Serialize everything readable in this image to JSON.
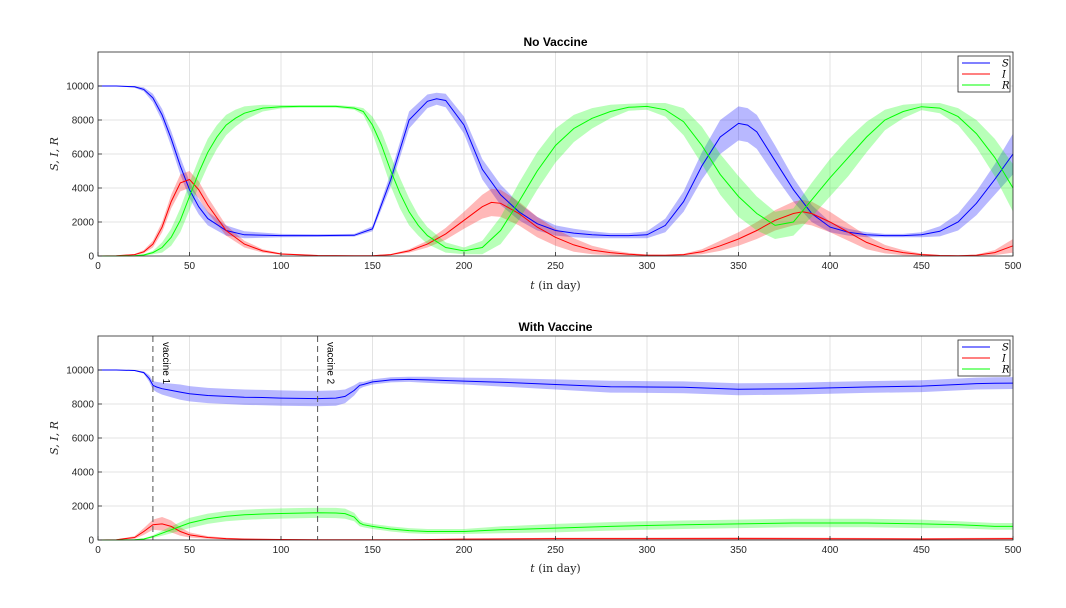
{
  "chart_data": [
    {
      "type": "line",
      "title": "No Vaccine",
      "xlabel": "t (in day)",
      "ylabel": "S, I, R",
      "xlim": [
        0,
        500
      ],
      "ylim": [
        0,
        12000
      ],
      "xticks": [
        0,
        50,
        100,
        150,
        200,
        250,
        300,
        350,
        400,
        450,
        500
      ],
      "yticks": [
        0,
        2000,
        4000,
        6000,
        8000,
        10000
      ],
      "grid": true,
      "legend_position": "top-right",
      "series": [
        {
          "name": "S",
          "color": "#0000ff",
          "x": [
            0,
            10,
            20,
            25,
            30,
            35,
            40,
            45,
            50,
            55,
            60,
            70,
            80,
            100,
            120,
            140,
            150,
            160,
            170,
            180,
            185,
            190,
            200,
            210,
            220,
            230,
            240,
            250,
            260,
            270,
            280,
            290,
            300,
            310,
            320,
            330,
            340,
            350,
            355,
            360,
            370,
            380,
            390,
            400,
            410,
            420,
            430,
            440,
            450,
            460,
            470,
            480,
            490,
            500
          ],
          "y": [
            10000,
            10000,
            9950,
            9800,
            9300,
            8300,
            6900,
            5300,
            3900,
            2900,
            2200,
            1500,
            1250,
            1200,
            1200,
            1220,
            1600,
            4500,
            8000,
            9100,
            9250,
            9150,
            7700,
            5100,
            3600,
            2600,
            1900,
            1500,
            1350,
            1250,
            1200,
            1200,
            1250,
            1800,
            3200,
            5300,
            7000,
            7800,
            7700,
            7300,
            5600,
            3900,
            2500,
            1700,
            1400,
            1250,
            1200,
            1200,
            1250,
            1450,
            2000,
            3100,
            4500,
            6000
          ],
          "band": [
            0,
            0,
            50,
            120,
            250,
            350,
            450,
            500,
            500,
            450,
            400,
            300,
            200,
            100,
            80,
            80,
            150,
            400,
            500,
            400,
            350,
            400,
            500,
            600,
            600,
            500,
            400,
            300,
            250,
            200,
            150,
            150,
            200,
            400,
            600,
            800,
            1000,
            1000,
            1000,
            1000,
            900,
            700,
            500,
            300,
            200,
            150,
            100,
            100,
            150,
            300,
            500,
            700,
            900,
            1200
          ]
        },
        {
          "name": "I",
          "color": "#ff0000",
          "x": [
            0,
            10,
            20,
            25,
            30,
            35,
            40,
            45,
            50,
            55,
            60,
            70,
            80,
            90,
            100,
            120,
            140,
            150,
            160,
            170,
            180,
            190,
            200,
            210,
            215,
            220,
            230,
            240,
            250,
            260,
            270,
            280,
            290,
            300,
            310,
            320,
            330,
            340,
            350,
            360,
            370,
            380,
            385,
            390,
            400,
            410,
            420,
            430,
            440,
            450,
            460,
            470,
            480,
            490,
            500
          ],
          "y": [
            0,
            10,
            80,
            250,
            700,
            1700,
            3200,
            4300,
            4500,
            3900,
            3000,
            1500,
            700,
            300,
            120,
            30,
            10,
            20,
            80,
            300,
            700,
            1300,
            2100,
            2900,
            3150,
            3100,
            2500,
            1700,
            1100,
            650,
            350,
            200,
            100,
            50,
            40,
            80,
            250,
            600,
            1000,
            1500,
            2100,
            2500,
            2600,
            2500,
            2000,
            1400,
            800,
            400,
            200,
            80,
            30,
            20,
            50,
            200,
            600
          ],
          "band": [
            0,
            10,
            40,
            100,
            200,
            300,
            400,
            500,
            500,
            500,
            450,
            300,
            200,
            100,
            50,
            20,
            10,
            15,
            40,
            100,
            200,
            350,
            500,
            700,
            800,
            800,
            700,
            600,
            500,
            400,
            250,
            150,
            80,
            40,
            30,
            50,
            150,
            300,
            400,
            500,
            600,
            700,
            700,
            700,
            600,
            500,
            400,
            250,
            150,
            60,
            30,
            20,
            40,
            150,
            400
          ]
        },
        {
          "name": "R",
          "color": "#00ff00",
          "x": [
            0,
            10,
            20,
            25,
            30,
            35,
            40,
            45,
            50,
            55,
            60,
            65,
            70,
            75,
            80,
            90,
            100,
            110,
            120,
            130,
            140,
            145,
            150,
            155,
            160,
            165,
            170,
            175,
            180,
            190,
            200,
            210,
            220,
            230,
            240,
            250,
            260,
            270,
            280,
            290,
            300,
            310,
            320,
            330,
            340,
            350,
            360,
            370,
            380,
            390,
            400,
            410,
            420,
            430,
            440,
            450,
            460,
            470,
            480,
            490,
            500
          ],
          "y": [
            0,
            0,
            20,
            60,
            200,
            500,
            1100,
            2100,
            3500,
            4900,
            6100,
            7000,
            7700,
            8100,
            8400,
            8700,
            8780,
            8800,
            8800,
            8800,
            8700,
            8500,
            7700,
            6500,
            5000,
            3700,
            2600,
            1800,
            1200,
            500,
            300,
            500,
            1500,
            3200,
            5000,
            6500,
            7500,
            8100,
            8500,
            8750,
            8800,
            8600,
            7900,
            6500,
            4800,
            3500,
            2500,
            1800,
            2000,
            3300,
            4600,
            5800,
            7000,
            8000,
            8500,
            8780,
            8700,
            8200,
            7200,
            5800,
            4000
          ],
          "band": [
            0,
            0,
            20,
            50,
            100,
            300,
            500,
            700,
            800,
            800,
            800,
            700,
            600,
            500,
            400,
            200,
            100,
            80,
            80,
            80,
            100,
            200,
            500,
            800,
            900,
            900,
            800,
            600,
            500,
            300,
            200,
            400,
            800,
            1100,
            1100,
            1000,
            800,
            600,
            400,
            200,
            200,
            400,
            800,
            1100,
            1200,
            1200,
            1000,
            800,
            800,
            1000,
            1100,
            1100,
            900,
            600,
            400,
            200,
            300,
            500,
            800,
            1100,
            1400
          ]
        }
      ]
    },
    {
      "type": "line",
      "title": "With Vaccine",
      "xlabel": "t (in day)",
      "ylabel": "S, I, R",
      "xlim": [
        0,
        500
      ],
      "ylim": [
        0,
        12000
      ],
      "xticks": [
        0,
        50,
        100,
        150,
        200,
        250,
        300,
        350,
        400,
        450,
        500
      ],
      "yticks": [
        0,
        2000,
        4000,
        6000,
        8000,
        10000
      ],
      "grid": true,
      "legend_position": "top-right",
      "annotations": [
        {
          "x": 30,
          "label": "vaccine 1"
        },
        {
          "x": 120,
          "label": "vaccine 2"
        }
      ],
      "series": [
        {
          "name": "S",
          "color": "#0000ff",
          "x": [
            0,
            10,
            20,
            25,
            28,
            30,
            32,
            35,
            40,
            45,
            50,
            60,
            70,
            80,
            90,
            100,
            110,
            120,
            130,
            135,
            140,
            143,
            145,
            150,
            160,
            170,
            180,
            200,
            220,
            250,
            280,
            300,
            320,
            350,
            380,
            400,
            420,
            450,
            470,
            480,
            490,
            500
          ],
          "y": [
            10000,
            10000,
            9970,
            9850,
            9500,
            9100,
            9000,
            8900,
            8800,
            8700,
            8600,
            8500,
            8450,
            8400,
            8380,
            8350,
            8330,
            8320,
            8350,
            8450,
            8800,
            9100,
            9150,
            9300,
            9420,
            9450,
            9420,
            9350,
            9280,
            9150,
            9020,
            9000,
            8980,
            8870,
            8900,
            8950,
            9000,
            9050,
            9150,
            9200,
            9220,
            9230
          ],
          "band": [
            0,
            0,
            20,
            60,
            200,
            250,
            300,
            350,
            400,
            450,
            450,
            450,
            450,
            450,
            450,
            450,
            450,
            450,
            450,
            400,
            300,
            200,
            150,
            150,
            150,
            150,
            180,
            200,
            250,
            300,
            350,
            350,
            350,
            350,
            350,
            350,
            350,
            350,
            350,
            350,
            350,
            350
          ]
        },
        {
          "name": "I",
          "color": "#ff0000",
          "x": [
            0,
            10,
            20,
            25,
            30,
            35,
            40,
            45,
            50,
            60,
            70,
            80,
            100,
            120,
            140,
            150,
            170,
            200,
            250,
            300,
            350,
            400,
            450,
            500
          ],
          "y": [
            0,
            20,
            150,
            500,
            900,
            950,
            800,
            500,
            300,
            150,
            80,
            50,
            30,
            20,
            15,
            15,
            20,
            50,
            80,
            80,
            80,
            70,
            60,
            80
          ],
          "band": [
            0,
            10,
            80,
            200,
            300,
            400,
            350,
            250,
            150,
            80,
            50,
            30,
            20,
            15,
            10,
            10,
            15,
            30,
            50,
            60,
            80,
            60,
            50,
            60
          ]
        },
        {
          "name": "R",
          "color": "#00ff00",
          "x": [
            0,
            10,
            20,
            25,
            30,
            35,
            40,
            45,
            50,
            60,
            70,
            80,
            90,
            100,
            110,
            120,
            130,
            135,
            140,
            143,
            145,
            150,
            160,
            170,
            180,
            200,
            220,
            250,
            280,
            300,
            320,
            350,
            380,
            400,
            420,
            450,
            470,
            480,
            490,
            500
          ],
          "y": [
            0,
            0,
            20,
            60,
            200,
            400,
            600,
            800,
            1000,
            1250,
            1400,
            1480,
            1530,
            1560,
            1580,
            1600,
            1590,
            1550,
            1350,
            1000,
            900,
            800,
            650,
            550,
            500,
            500,
            600,
            700,
            800,
            850,
            900,
            950,
            1000,
            1000,
            1000,
            950,
            900,
            850,
            800,
            800
          ],
          "band": [
            0,
            0,
            10,
            30,
            80,
            150,
            200,
            250,
            300,
            300,
            300,
            300,
            300,
            300,
            300,
            300,
            300,
            300,
            250,
            200,
            150,
            150,
            150,
            150,
            150,
            150,
            200,
            250,
            250,
            250,
            250,
            250,
            250,
            250,
            250,
            250,
            200,
            200,
            200,
            200
          ]
        }
      ]
    }
  ]
}
